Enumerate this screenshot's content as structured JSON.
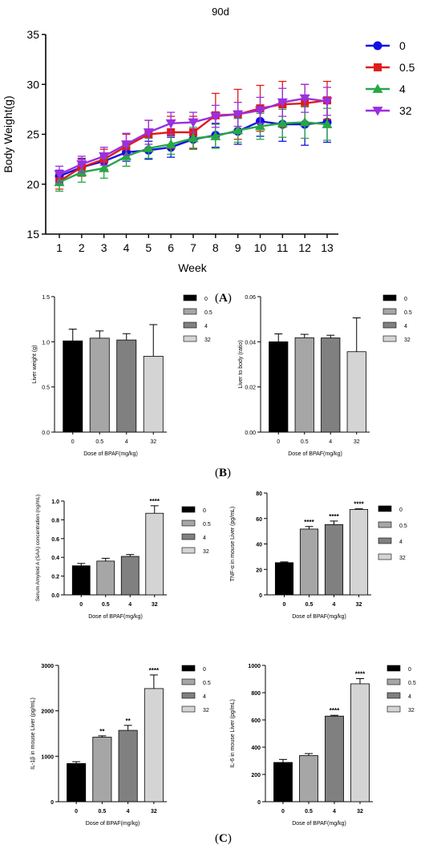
{
  "panels": {
    "a": "A",
    "b": "B",
    "c": "C"
  },
  "chart_data": [
    {
      "id": "line",
      "type": "line",
      "title": "90d",
      "xlabel": "Week",
      "ylabel": "Body Weight(g)",
      "x": [
        1,
        2,
        3,
        4,
        5,
        6,
        7,
        8,
        9,
        10,
        11,
        12,
        13
      ],
      "ylim": [
        15,
        35
      ],
      "yticks": [
        15,
        20,
        25,
        30,
        35
      ],
      "legend_position": "right",
      "series": [
        {
          "name": "0",
          "color": "#1010e6",
          "marker": "circle",
          "values": [
            20.8,
            21.7,
            22.3,
            23.2,
            23.4,
            23.7,
            24.5,
            24.9,
            25.3,
            26.3,
            26.0,
            26.0,
            26.2
          ],
          "err": [
            0.6,
            0.8,
            0.8,
            0.9,
            0.9,
            1.0,
            1.0,
            1.2,
            1.3,
            1.5,
            1.7,
            2.1,
            2.0
          ]
        },
        {
          "name": "0.5",
          "color": "#e01a1a",
          "marker": "square",
          "values": [
            20.3,
            21.7,
            22.5,
            23.8,
            25.0,
            25.2,
            25.2,
            26.9,
            27.0,
            27.6,
            28.0,
            28.1,
            28.4
          ],
          "err": [
            0.8,
            0.9,
            1.0,
            1.2,
            1.4,
            1.6,
            1.6,
            2.2,
            2.5,
            2.3,
            2.3,
            1.9,
            1.9
          ]
        },
        {
          "name": "4",
          "color": "#28a745",
          "marker": "triangle",
          "values": [
            20.2,
            21.2,
            21.6,
            22.8,
            23.6,
            24.0,
            24.6,
            24.8,
            25.4,
            25.8,
            26.1,
            26.2,
            26.0
          ],
          "err": [
            0.9,
            1.0,
            1.0,
            1.0,
            1.0,
            1.0,
            1.1,
            1.2,
            1.2,
            1.3,
            1.4,
            1.6,
            1.6
          ]
        },
        {
          "name": "32",
          "color": "#9b2fe0",
          "marker": "triangle-down",
          "values": [
            21.0,
            22.0,
            22.8,
            24.0,
            25.2,
            26.1,
            26.2,
            26.8,
            27.0,
            27.4,
            28.2,
            28.6,
            28.3
          ],
          "err": [
            0.8,
            0.8,
            0.9,
            1.1,
            1.2,
            1.1,
            1.0,
            1.1,
            1.2,
            1.3,
            1.4,
            1.4,
            1.4
          ]
        }
      ]
    },
    {
      "id": "b1",
      "type": "bar",
      "xlabel": "Dose of BPAF(mg/kg)",
      "ylabel": "Liver weight (g)",
      "categories": [
        "0",
        "0.5",
        "4",
        "32"
      ],
      "values": [
        1.01,
        1.04,
        1.02,
        0.84
      ],
      "err": [
        0.13,
        0.08,
        0.07,
        0.35
      ],
      "ylim": [
        0,
        1.5
      ],
      "yticks": [
        0.0,
        0.5,
        1.0,
        1.5
      ],
      "ytick_labels": [
        "0.0",
        "0.5",
        "1.0",
        "1.5"
      ],
      "sig": [
        "",
        "",
        "",
        ""
      ],
      "colors": [
        "#000000",
        "#a6a6a6",
        "#808080",
        "#d4d4d4"
      ],
      "legend": [
        "0",
        "0.5",
        "4",
        "32"
      ]
    },
    {
      "id": "b2",
      "type": "bar",
      "xlabel": "Dose of BPAF(mg/kg)",
      "ylabel": "Liver to body (ratio)",
      "categories": [
        "0",
        "0.5",
        "4",
        "32"
      ],
      "values": [
        0.04,
        0.0418,
        0.0417,
        0.0356
      ],
      "err": [
        0.0035,
        0.0015,
        0.0012,
        0.015
      ],
      "ylim": [
        0,
        0.06
      ],
      "yticks": [
        0.0,
        0.02,
        0.04,
        0.06
      ],
      "ytick_labels": [
        "0.00",
        "0.02",
        "0.04",
        "0.06"
      ],
      "sig": [
        "",
        "",
        "",
        ""
      ],
      "colors": [
        "#000000",
        "#a6a6a6",
        "#808080",
        "#d4d4d4"
      ],
      "legend": [
        "0",
        "0.5",
        "4",
        "32"
      ]
    },
    {
      "id": "c1",
      "type": "bar",
      "xlabel": "Dose of BPAF(mg/kg)",
      "ylabel": "Serum Amyloid A (SAA) concentration (ng/mL)",
      "categories": [
        "0",
        "0.5",
        "4",
        "32"
      ],
      "values": [
        0.31,
        0.36,
        0.41,
        0.87
      ],
      "err": [
        0.025,
        0.03,
        0.02,
        0.08
      ],
      "ylim": [
        0,
        1.0
      ],
      "yticks": [
        0.0,
        0.2,
        0.4,
        0.6,
        0.8,
        1.0
      ],
      "ytick_labels": [
        "0.0",
        "0.2",
        "0.4",
        "0.6",
        "0.8",
        "1.0"
      ],
      "sig": [
        "",
        "",
        "",
        "****"
      ],
      "colors": [
        "#000000",
        "#a6a6a6",
        "#808080",
        "#d4d4d4"
      ],
      "legend": [
        "0",
        "0.5",
        "4",
        "32"
      ]
    },
    {
      "id": "c2",
      "type": "bar",
      "xlabel": "Dose of BPAF(mg/kg)",
      "ylabel": "TNF-α in mouse Liver (pg/mL)",
      "categories": [
        "0",
        "0.5",
        "4",
        "32"
      ],
      "values": [
        25.3,
        51.7,
        55.2,
        67.1
      ],
      "err": [
        0.6,
        2.0,
        2.8,
        0.5
      ],
      "ylim": [
        0,
        80
      ],
      "yticks": [
        0,
        20,
        40,
        60,
        80
      ],
      "ytick_labels": [
        "0",
        "20",
        "40",
        "60",
        "80"
      ],
      "sig": [
        "",
        "****",
        "****",
        "****"
      ],
      "colors": [
        "#000000",
        "#a6a6a6",
        "#808080",
        "#d4d4d4"
      ],
      "legend": [
        "0",
        "0.5",
        "4",
        "32"
      ]
    },
    {
      "id": "c3",
      "type": "bar",
      "xlabel": "Dose of BPAF(mg/kg)",
      "ylabel": "IL-1β in mouse Liver (pg/mL)",
      "categories": [
        "0",
        "0.5",
        "4",
        "32"
      ],
      "values": [
        840,
        1420,
        1570,
        2490
      ],
      "err": [
        40,
        30,
        110,
        300
      ],
      "ylim": [
        0,
        3000
      ],
      "yticks": [
        0,
        1000,
        2000,
        3000
      ],
      "ytick_labels": [
        "0",
        "1000",
        "2000",
        "3000"
      ],
      "sig": [
        "",
        "**",
        "**",
        "****"
      ],
      "colors": [
        "#000000",
        "#a6a6a6",
        "#808080",
        "#d4d4d4"
      ],
      "legend": [
        "0",
        "0.5",
        "4",
        "32"
      ]
    },
    {
      "id": "c4",
      "type": "bar",
      "xlabel": "Dose of BPAF(mg/kg)",
      "ylabel": "IL-6 in mouse Liver (pg/mL)",
      "categories": [
        "0",
        "0.5",
        "4",
        "32"
      ],
      "values": [
        288,
        338,
        628,
        865
      ],
      "err": [
        22,
        15,
        6,
        38
      ],
      "ylim": [
        0,
        1000
      ],
      "yticks": [
        0,
        200,
        400,
        600,
        800,
        1000
      ],
      "ytick_labels": [
        "0",
        "200",
        "400",
        "600",
        "800",
        "1000"
      ],
      "sig": [
        "",
        "",
        "****",
        "****"
      ],
      "colors": [
        "#000000",
        "#a6a6a6",
        "#808080",
        "#d4d4d4"
      ],
      "legend": [
        "0",
        "0.5",
        "4",
        "32"
      ]
    }
  ]
}
